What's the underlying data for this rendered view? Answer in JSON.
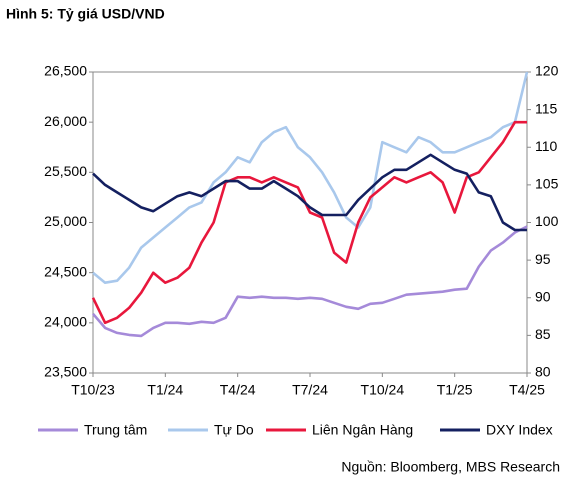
{
  "chart_data": {
    "type": "line",
    "title": "Hình 5: Tỷ giá USD/VND",
    "categories": [
      "T10/23",
      null,
      null,
      null,
      null,
      null,
      "T1/24",
      null,
      null,
      null,
      null,
      null,
      "T4/24",
      null,
      null,
      null,
      null,
      null,
      "T7/24",
      null,
      null,
      null,
      null,
      null,
      "T10/24",
      null,
      null,
      null,
      null,
      null,
      "T1/25",
      null,
      null,
      null,
      null,
      null,
      "T4/25"
    ],
    "series": [
      {
        "name": "Trung tâm",
        "color": "#a58ad9",
        "values": [
          24090,
          23950,
          23900,
          23880,
          23870,
          23950,
          24000,
          24000,
          23990,
          24010,
          24000,
          24050,
          24260,
          24250,
          24260,
          24250,
          24250,
          24240,
          24250,
          24240,
          24200,
          24160,
          24140,
          24190,
          24200,
          24240,
          24280,
          24290,
          24300,
          24310,
          24330,
          24340,
          24560,
          24720,
          24800,
          24900,
          24960
        ]
      },
      {
        "name": "Tự Do",
        "color": "#a9c8ec",
        "values": [
          24500,
          24400,
          24420,
          24550,
          24750,
          24850,
          24950,
          25050,
          25150,
          25200,
          25400,
          25500,
          25650,
          25600,
          25800,
          25900,
          25950,
          25750,
          25650,
          25500,
          25300,
          25050,
          24950,
          25150,
          25800,
          25750,
          25700,
          25850,
          25800,
          25700,
          25700,
          25750,
          25800,
          25850,
          25950,
          26000,
          26500
        ]
      },
      {
        "name": "Liên Ngân Hàng",
        "color": "#e8173c",
        "values": [
          24250,
          24000,
          24050,
          24150,
          24300,
          24500,
          24400,
          24450,
          24550,
          24800,
          25000,
          25400,
          25450,
          25450,
          25400,
          25450,
          25400,
          25350,
          25100,
          25050,
          24700,
          24600,
          25000,
          25250,
          25350,
          25450,
          25400,
          25450,
          25500,
          25400,
          25100,
          25450,
          25500,
          25650,
          25800,
          26000,
          26000
        ]
      },
      {
        "name": "DXY Index",
        "color": "#142060",
        "axis": "y2",
        "values": [
          106.5,
          105,
          104,
          103,
          102,
          101.5,
          102.5,
          103.5,
          104,
          103.5,
          104.5,
          105.5,
          105.5,
          104.5,
          104.5,
          105.5,
          104.5,
          103.5,
          102,
          101,
          101,
          101,
          103,
          104.5,
          106,
          107,
          107,
          108,
          109,
          108,
          107,
          106.5,
          104,
          103.5,
          100,
          99,
          99
        ]
      }
    ],
    "ylim": [
      23500,
      26500
    ],
    "yticks": [
      {
        "value": 23500,
        "label": "23,500"
      },
      {
        "value": 24000,
        "label": "24,000"
      },
      {
        "value": 24500,
        "label": "24,500"
      },
      {
        "value": 25000,
        "label": "25,000"
      },
      {
        "value": 25500,
        "label": "25,500"
      },
      {
        "value": 26000,
        "label": "26,000"
      },
      {
        "value": 26500,
        "label": "26,500"
      }
    ],
    "y2lim": [
      80,
      120
    ],
    "y2ticks": [
      80,
      85,
      90,
      95,
      100,
      105,
      110,
      115,
      120
    ],
    "grid": false,
    "legend": "bottom",
    "source": "Nguồn: Bloomberg, MBS Research"
  }
}
